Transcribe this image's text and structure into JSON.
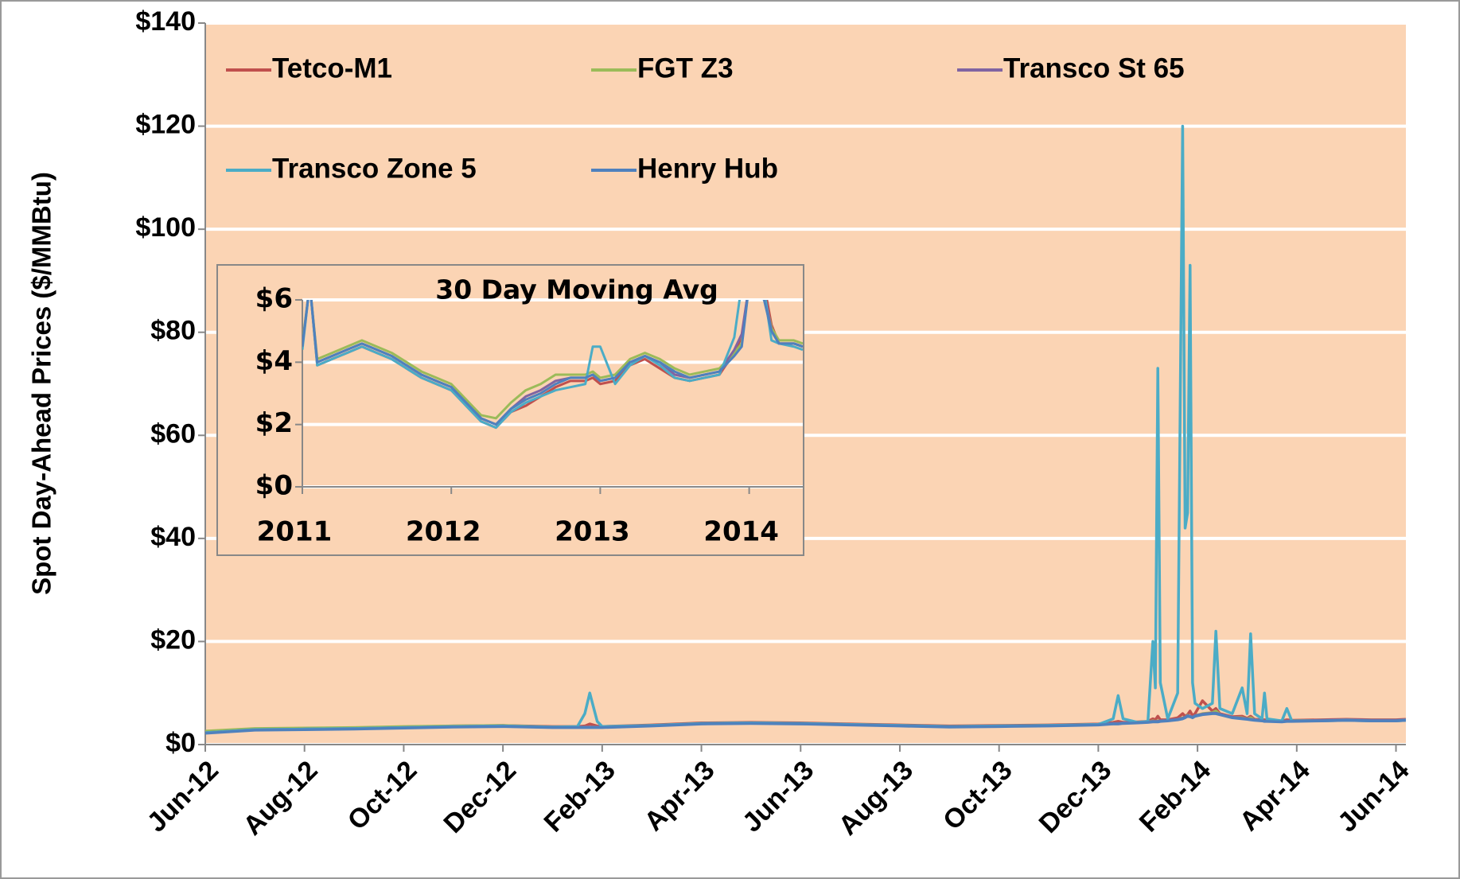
{
  "chart_data": [
    {
      "type": "line",
      "y_label": "Spot Day-Ahead Prices ($/MMBtu)",
      "xlim": [
        0,
        24.2
      ],
      "ylim": [
        0,
        140
      ],
      "grid": true,
      "xticks": [
        {
          "value": 0,
          "label": "Jun-12"
        },
        {
          "value": 2,
          "label": "Aug-12"
        },
        {
          "value": 4,
          "label": "Oct-12"
        },
        {
          "value": 6,
          "label": "Dec-12"
        },
        {
          "value": 8,
          "label": "Feb-13"
        },
        {
          "value": 10,
          "label": "Apr-13"
        },
        {
          "value": 12,
          "label": "Jun-13"
        },
        {
          "value": 14,
          "label": "Aug-13"
        },
        {
          "value": 16,
          "label": "Oct-13"
        },
        {
          "value": 18,
          "label": "Dec-13"
        },
        {
          "value": 20,
          "label": "Feb-14"
        },
        {
          "value": 22,
          "label": "Apr-14"
        },
        {
          "value": 24,
          "label": "Jun-14"
        }
      ],
      "yticks": [
        {
          "value": 0,
          "label": "$0"
        },
        {
          "value": 20,
          "label": "$20"
        },
        {
          "value": 40,
          "label": "$40"
        },
        {
          "value": 60,
          "label": "$60"
        },
        {
          "value": 80,
          "label": "$80"
        },
        {
          "value": 100,
          "label": "$100"
        },
        {
          "value": 120,
          "label": "$120"
        },
        {
          "value": 140,
          "label": "$140"
        }
      ],
      "x": [
        0,
        1,
        2,
        3,
        4,
        5,
        6,
        7,
        7.5,
        7.65,
        7.75,
        7.9,
        8,
        9,
        10,
        11,
        12,
        13,
        14,
        15,
        16,
        17,
        17.5,
        18,
        18.3,
        18.4,
        18.5,
        18.8,
        19,
        19.1,
        19.15,
        19.2,
        19.25,
        19.4,
        19.6,
        19.7,
        19.75,
        19.8,
        19.85,
        19.9,
        19.95,
        20.1,
        20.3,
        20.37,
        20.45,
        20.7,
        20.9,
        21,
        21.07,
        21.15,
        21.3,
        21.35,
        21.4,
        21.7,
        21.8,
        21.9,
        22.5,
        23,
        23.5,
        24,
        24.2
      ],
      "series": [
        {
          "name": "Tetco-M1",
          "color": "#c0504d",
          "values": [
            2.4,
            3.0,
            3.1,
            3.2,
            3.4,
            3.6,
            3.7,
            3.5,
            3.5,
            3.6,
            4.0,
            3.6,
            3.5,
            3.8,
            4.2,
            4.3,
            4.2,
            4.0,
            3.8,
            3.6,
            3.7,
            3.8,
            3.9,
            4.0,
            4.3,
            4.5,
            4.3,
            4.4,
            4.5,
            5.0,
            4.8,
            5.5,
            4.8,
            4.8,
            5.2,
            6.0,
            5.5,
            5.8,
            6.5,
            5.6,
            6.0,
            8.5,
            6.5,
            7.0,
            6.0,
            5.4,
            5.5,
            5.1,
            5.5,
            4.9,
            4.8,
            4.8,
            4.7,
            4.6,
            4.8,
            4.7,
            4.8,
            4.9,
            4.8,
            4.8,
            4.9
          ]
        },
        {
          "name": "FGT Z3",
          "color": "#9bbb59",
          "values": [
            2.6,
            3.1,
            3.2,
            3.3,
            3.5,
            3.6,
            3.7,
            3.4,
            3.4,
            3.4,
            3.4,
            3.4,
            3.4,
            3.7,
            4.1,
            4.2,
            4.1,
            3.9,
            3.7,
            3.5,
            3.6,
            3.7,
            3.8,
            3.9,
            4.1,
            4.1,
            4.2,
            4.3,
            4.4,
            4.6,
            4.5,
            4.6,
            4.6,
            4.7,
            4.9,
            5.2,
            5.3,
            5.7,
            5.5,
            5.3,
            5.6,
            6.0,
            6.2,
            6.5,
            5.9,
            5.3,
            5.2,
            5.0,
            5.2,
            4.8,
            4.7,
            4.6,
            4.6,
            4.5,
            4.6,
            4.6,
            4.7,
            4.8,
            4.7,
            4.7,
            4.8
          ]
        },
        {
          "name": "Transco St 65",
          "color": "#8064a2",
          "values": [
            2.3,
            2.9,
            3.0,
            3.1,
            3.3,
            3.5,
            3.6,
            3.4,
            3.4,
            3.4,
            3.4,
            3.4,
            3.4,
            3.7,
            4.1,
            4.2,
            4.1,
            3.9,
            3.7,
            3.5,
            3.6,
            3.7,
            3.8,
            3.9,
            4.1,
            4.1,
            4.2,
            4.3,
            4.4,
            4.5,
            4.5,
            4.5,
            4.6,
            4.7,
            4.9,
            5.1,
            5.3,
            5.6,
            5.5,
            5.3,
            5.6,
            5.9,
            6.1,
            6.1,
            5.9,
            5.3,
            5.1,
            5.0,
            4.9,
            4.8,
            4.7,
            4.6,
            4.6,
            4.5,
            4.6,
            4.6,
            4.7,
            4.8,
            4.7,
            4.7,
            4.8
          ]
        },
        {
          "name": "Transco Zone 5",
          "color": "#4bacc6",
          "values": [
            2.3,
            2.9,
            3.0,
            3.1,
            3.3,
            3.5,
            3.6,
            3.4,
            3.5,
            6,
            10,
            4.5,
            3.5,
            3.7,
            4.1,
            4.2,
            4.1,
            3.9,
            3.7,
            3.5,
            3.6,
            3.7,
            3.8,
            3.9,
            5.0,
            9.5,
            5.0,
            4.3,
            4.5,
            20,
            11,
            73,
            12,
            5,
            10,
            120,
            42,
            45,
            93,
            12,
            8,
            7,
            8,
            22,
            7,
            6,
            11,
            6,
            21.5,
            6,
            5,
            10,
            5,
            4.6,
            7,
            4.6,
            4.6,
            4.7,
            4.6,
            4.6,
            4.7
          ]
        },
        {
          "name": "Henry Hub",
          "color": "#4f81bd",
          "values": [
            2.2,
            2.8,
            2.9,
            3.0,
            3.2,
            3.4,
            3.5,
            3.3,
            3.3,
            3.3,
            3.3,
            3.3,
            3.3,
            3.6,
            4.0,
            4.1,
            4.0,
            3.8,
            3.6,
            3.4,
            3.5,
            3.6,
            3.7,
            3.8,
            4.0,
            4.0,
            4.1,
            4.2,
            4.3,
            4.4,
            4.4,
            4.4,
            4.5,
            4.6,
            4.8,
            5.0,
            5.2,
            5.5,
            5.4,
            5.2,
            5.5,
            5.8,
            6.0,
            6.0,
            5.8,
            5.2,
            5.0,
            4.9,
            4.8,
            4.7,
            4.6,
            4.5,
            4.5,
            4.4,
            4.5,
            4.5,
            4.6,
            4.7,
            4.6,
            4.6,
            4.7
          ]
        }
      ]
    },
    {
      "type": "line",
      "title": "30 Day Moving Avg",
      "xlim": [
        2011,
        2014.36
      ],
      "ylim": [
        0,
        6
      ],
      "grid": true,
      "xticks": [
        2011,
        2012,
        2013,
        2014
      ],
      "yticks": [
        {
          "value": 0,
          "label": "$0"
        },
        {
          "value": 2,
          "label": "$2"
        },
        {
          "value": 4,
          "label": "$4"
        },
        {
          "value": 6,
          "label": "$6"
        }
      ],
      "x": [
        2011,
        2011.05,
        2011.1,
        2011.2,
        2011.3,
        2011.4,
        2011.5,
        2011.6,
        2011.7,
        2011.8,
        2011.9,
        2012,
        2012.1,
        2012.2,
        2012.3,
        2012.4,
        2012.5,
        2012.6,
        2012.7,
        2012.8,
        2012.9,
        2012.95,
        2013,
        2013.1,
        2013.2,
        2013.3,
        2013.4,
        2013.5,
        2013.6,
        2013.7,
        2013.8,
        2013.9,
        2013.95,
        2014,
        2014.1,
        2014.15,
        2014.2,
        2014.3,
        2014.36
      ],
      "series": [
        {
          "color": "#c0504d",
          "values": [
            4.5,
            6.5,
            3.9,
            4.1,
            4.3,
            4.5,
            4.3,
            4.1,
            3.8,
            3.5,
            3.3,
            3.1,
            2.6,
            2.1,
            1.9,
            2.4,
            2.6,
            2.9,
            3.2,
            3.4,
            3.4,
            3.5,
            3.3,
            3.4,
            3.9,
            4.1,
            3.8,
            3.5,
            3.4,
            3.5,
            3.6,
            4.3,
            4.8,
            6.5,
            6.5,
            5.2,
            4.6,
            4.6,
            4.5
          ]
        },
        {
          "color": "#9bbb59",
          "values": [
            4.6,
            6.5,
            4.1,
            4.3,
            4.5,
            4.7,
            4.5,
            4.3,
            4.0,
            3.7,
            3.5,
            3.3,
            2.8,
            2.3,
            2.2,
            2.7,
            3.1,
            3.3,
            3.6,
            3.6,
            3.6,
            3.7,
            3.5,
            3.6,
            4.1,
            4.3,
            4.1,
            3.8,
            3.6,
            3.7,
            3.8,
            4.3,
            4.6,
            6.5,
            6.2,
            5.1,
            4.7,
            4.7,
            4.6
          ]
        },
        {
          "color": "#8064a2",
          "values": [
            4.5,
            6.5,
            4.0,
            4.2,
            4.4,
            4.6,
            4.4,
            4.2,
            3.9,
            3.6,
            3.4,
            3.2,
            2.7,
            2.2,
            2.0,
            2.5,
            2.9,
            3.1,
            3.4,
            3.5,
            3.5,
            3.6,
            3.4,
            3.5,
            4.0,
            4.2,
            4.0,
            3.6,
            3.5,
            3.6,
            3.7,
            4.4,
            4.9,
            6.5,
            6.3,
            5.0,
            4.6,
            4.6,
            4.5
          ]
        },
        {
          "color": "#4bacc6",
          "values": [
            4.4,
            6.5,
            3.9,
            4.1,
            4.3,
            4.5,
            4.3,
            4.1,
            3.8,
            3.5,
            3.3,
            3.1,
            2.6,
            2.1,
            1.9,
            2.4,
            2.7,
            2.9,
            3.1,
            3.2,
            3.3,
            4.5,
            4.5,
            3.3,
            3.9,
            4.2,
            3.9,
            3.5,
            3.4,
            3.5,
            3.6,
            4.8,
            6.5,
            6.5,
            6.3,
            4.7,
            4.6,
            4.5,
            4.4
          ]
        },
        {
          "color": "#4f81bd",
          "values": [
            4.5,
            6.5,
            4.0,
            4.2,
            4.4,
            4.6,
            4.4,
            4.2,
            3.9,
            3.6,
            3.4,
            3.2,
            2.7,
            2.2,
            2.0,
            2.5,
            2.8,
            3.0,
            3.3,
            3.5,
            3.5,
            3.6,
            3.4,
            3.5,
            4.0,
            4.2,
            4.0,
            3.7,
            3.5,
            3.6,
            3.7,
            4.2,
            4.5,
            6.5,
            6.0,
            5.0,
            4.6,
            4.6,
            4.5
          ]
        }
      ]
    }
  ]
}
